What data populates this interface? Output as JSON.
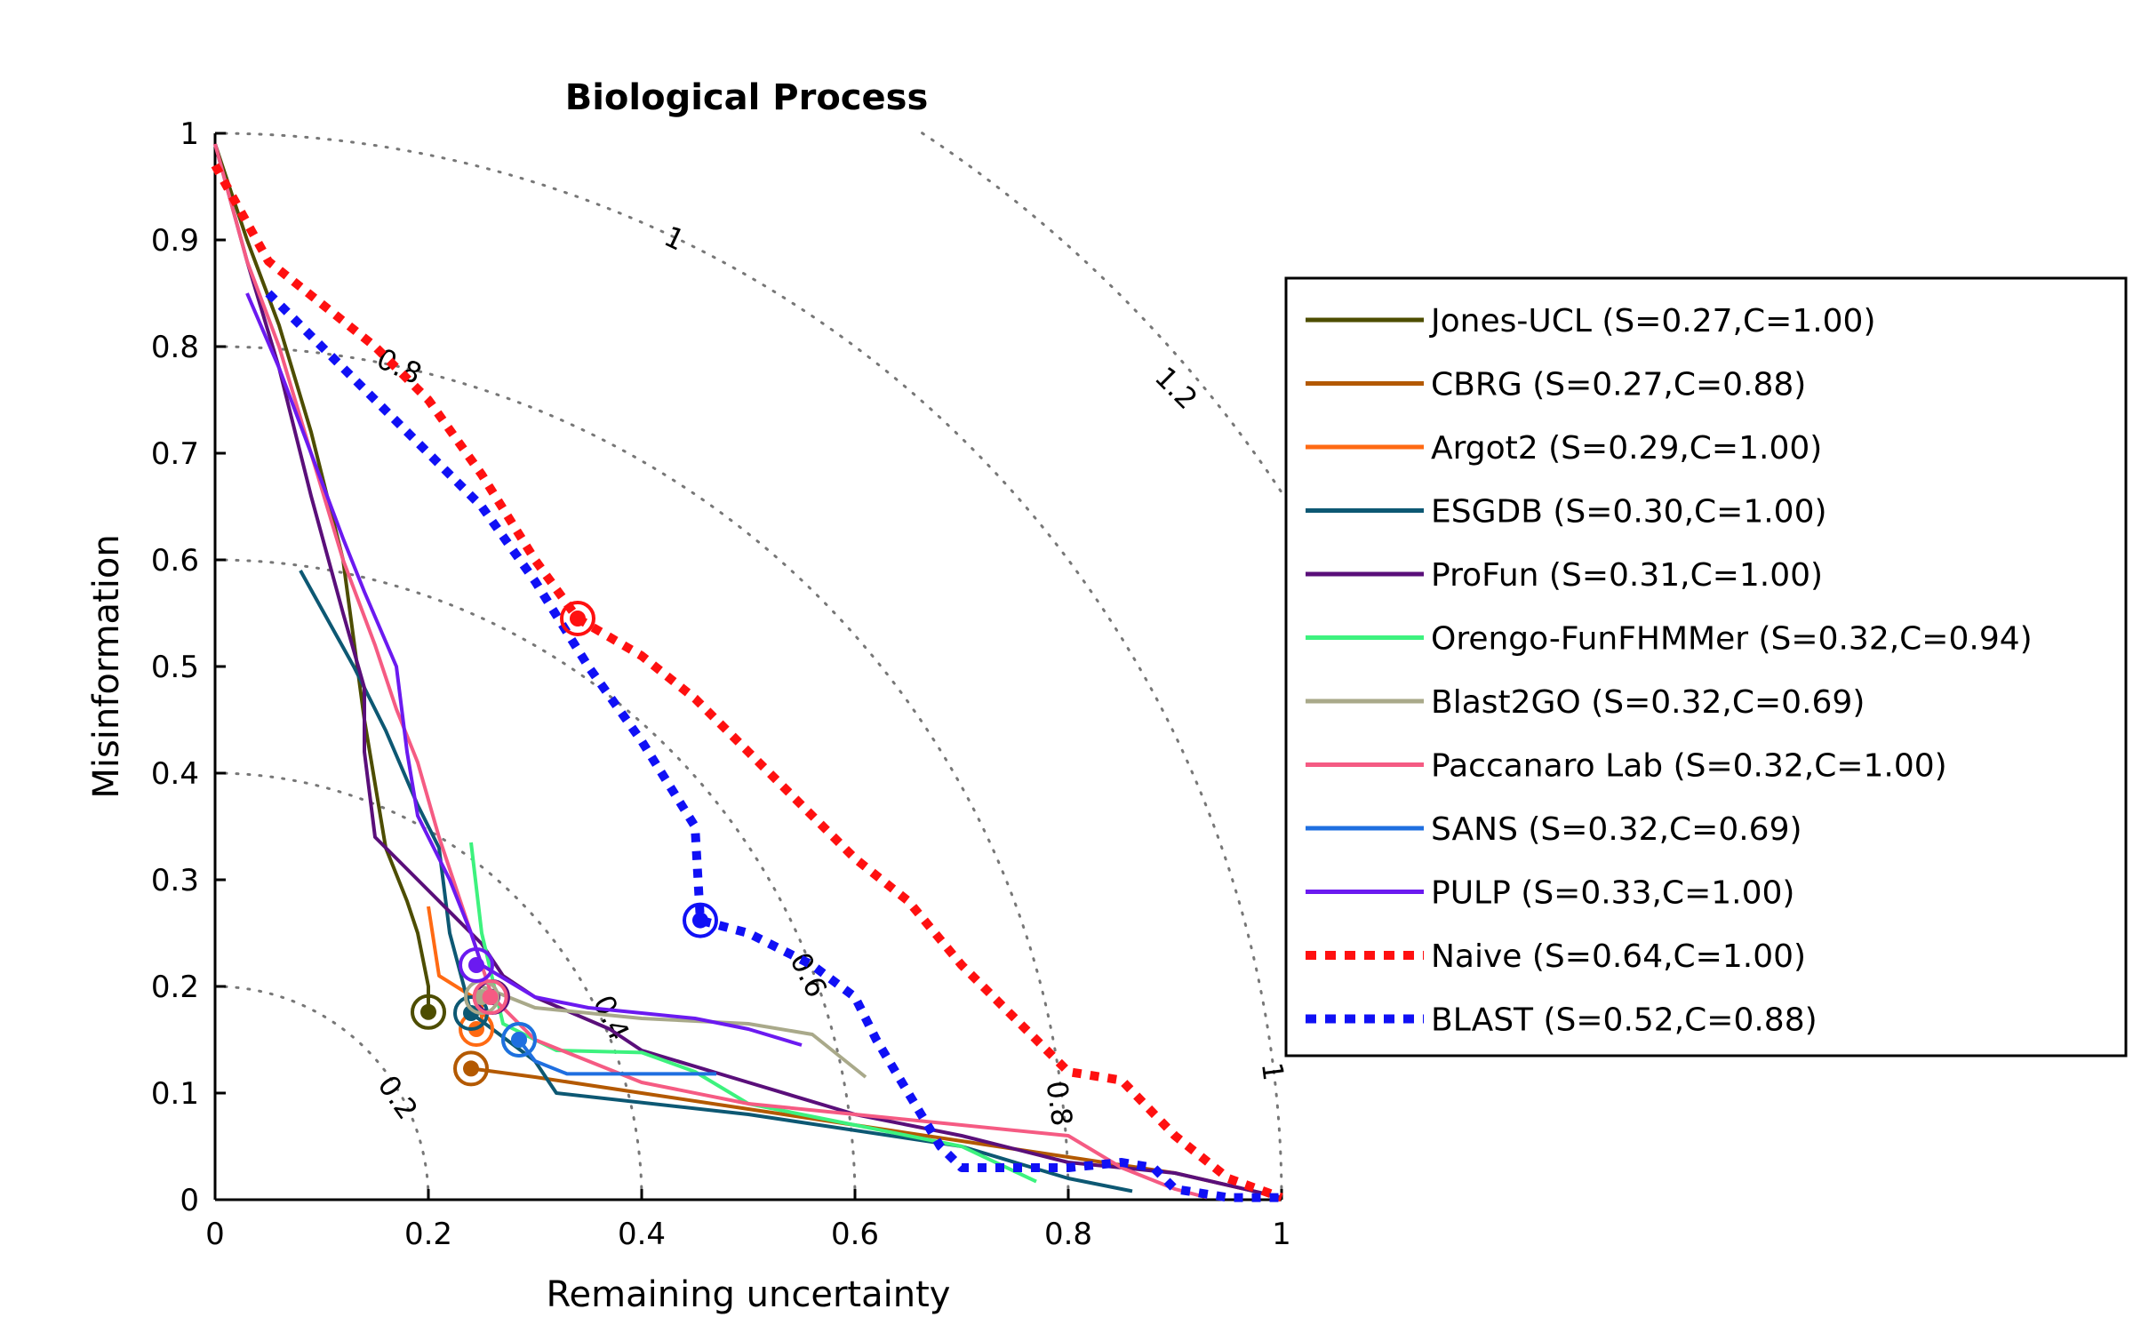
{
  "chart_data": {
    "type": "line",
    "title": "Biological Process",
    "xlabel": "Remaining uncertainty",
    "ylabel": "Misinformation",
    "xlim": [
      0,
      1
    ],
    "ylim": [
      0,
      1
    ],
    "xticks": [
      "0",
      "0.2",
      "0.4",
      "0.6",
      "0.8",
      "1"
    ],
    "yticks": [
      "0",
      "0.1",
      "0.2",
      "0.3",
      "0.4",
      "0.5",
      "0.6",
      "0.7",
      "0.8",
      "0.9",
      "1"
    ],
    "grid": "dotted iso-semantic-distance arcs",
    "iso_curves": [
      {
        "radius": 0.2,
        "label": "0.2"
      },
      {
        "radius": 0.4,
        "label": "0.4"
      },
      {
        "radius": 0.6,
        "label": "0.6"
      },
      {
        "radius": 0.8,
        "label": "0.8"
      },
      {
        "radius": 1.0,
        "label": "1"
      },
      {
        "radius": 1.2,
        "label": "1.2"
      }
    ],
    "legend_position": "right",
    "series": [
      {
        "name": "Jones-UCL (S=0.27,C=1.00)",
        "color": "#4d4d00",
        "style": "solid",
        "points": [
          [
            0,
            0.99
          ],
          [
            0.03,
            0.9
          ],
          [
            0.06,
            0.82
          ],
          [
            0.09,
            0.72
          ],
          [
            0.12,
            0.6
          ],
          [
            0.14,
            0.45
          ],
          [
            0.15,
            0.39
          ],
          [
            0.16,
            0.33
          ],
          [
            0.18,
            0.28
          ],
          [
            0.19,
            0.25
          ],
          [
            0.2,
            0.2
          ],
          [
            0.2,
            0.176
          ]
        ],
        "marker": [
          0.2,
          0.176
        ]
      },
      {
        "name": "CBRG (S=0.27,C=0.88)",
        "color": "#b35900",
        "style": "solid",
        "points": [
          [
            0.24,
            0.123
          ],
          [
            0.3,
            0.115
          ],
          [
            0.4,
            0.1
          ],
          [
            0.5,
            0.085
          ],
          [
            0.6,
            0.07
          ],
          [
            0.7,
            0.055
          ],
          [
            0.8,
            0.04
          ],
          [
            0.9,
            0.025
          ],
          [
            1.0,
            0.002
          ]
        ],
        "marker": [
          0.24,
          0.123
        ]
      },
      {
        "name": "Argot2 (S=0.29,C=1.00)",
        "color": "#ff6a13",
        "style": "solid",
        "points": [
          [
            0.2,
            0.275
          ],
          [
            0.21,
            0.21
          ],
          [
            0.25,
            0.185
          ],
          [
            0.25,
            0.16
          ]
        ],
        "marker": [
          0.245,
          0.16
        ]
      },
      {
        "name": "ESGDB (S=0.30,C=1.00)",
        "color": "#0d5873",
        "style": "solid",
        "points": [
          [
            0.08,
            0.59
          ],
          [
            0.13,
            0.5
          ],
          [
            0.16,
            0.44
          ],
          [
            0.19,
            0.37
          ],
          [
            0.21,
            0.33
          ],
          [
            0.22,
            0.25
          ],
          [
            0.24,
            0.175
          ],
          [
            0.3,
            0.13
          ],
          [
            0.32,
            0.1
          ],
          [
            0.5,
            0.08
          ],
          [
            0.7,
            0.05
          ],
          [
            0.8,
            0.02
          ],
          [
            0.86,
            0.008
          ]
        ],
        "marker": [
          0.24,
          0.175
        ]
      },
      {
        "name": "ProFun (S=0.31,C=1.00)",
        "color": "#5a0f7a",
        "style": "solid",
        "points": [
          [
            0,
            0.99
          ],
          [
            0.03,
            0.88
          ],
          [
            0.06,
            0.78
          ],
          [
            0.09,
            0.66
          ],
          [
            0.12,
            0.55
          ],
          [
            0.14,
            0.48
          ],
          [
            0.14,
            0.42
          ],
          [
            0.15,
            0.34
          ],
          [
            0.2,
            0.29
          ],
          [
            0.25,
            0.24
          ],
          [
            0.27,
            0.21
          ],
          [
            0.3,
            0.19
          ],
          [
            0.37,
            0.16
          ],
          [
            0.4,
            0.14
          ],
          [
            0.5,
            0.11
          ],
          [
            0.6,
            0.08
          ],
          [
            0.7,
            0.06
          ],
          [
            0.8,
            0.035
          ],
          [
            0.9,
            0.025
          ],
          [
            1.0,
            0.002
          ]
        ],
        "marker": [
          0.26,
          0.19
        ]
      },
      {
        "name": "Orengo-FunFHMMer (S=0.32,C=0.94)",
        "color": "#3df27e",
        "style": "solid",
        "points": [
          [
            0.24,
            0.335
          ],
          [
            0.25,
            0.25
          ],
          [
            0.27,
            0.165
          ],
          [
            0.32,
            0.14
          ],
          [
            0.4,
            0.138
          ],
          [
            0.45,
            0.12
          ],
          [
            0.5,
            0.09
          ],
          [
            0.6,
            0.07
          ],
          [
            0.7,
            0.05
          ],
          [
            0.77,
            0.017
          ]
        ],
        "marker": [
          0.285,
          0.15
        ]
      },
      {
        "name": "Blast2GO (S=0.32,C=0.69)",
        "color": "#a9a98a",
        "style": "solid",
        "points": [
          [
            0.25,
            0.2
          ],
          [
            0.3,
            0.18
          ],
          [
            0.4,
            0.17
          ],
          [
            0.5,
            0.165
          ],
          [
            0.56,
            0.155
          ],
          [
            0.61,
            0.115
          ]
        ],
        "marker": [
          0.25,
          0.19
        ]
      },
      {
        "name": "Paccanaro Lab (S=0.32,C=1.00)",
        "color": "#f55b83",
        "style": "solid",
        "points": [
          [
            0,
            0.99
          ],
          [
            0.03,
            0.88
          ],
          [
            0.06,
            0.8
          ],
          [
            0.09,
            0.7
          ],
          [
            0.12,
            0.6
          ],
          [
            0.15,
            0.52
          ],
          [
            0.17,
            0.46
          ],
          [
            0.19,
            0.41
          ],
          [
            0.21,
            0.34
          ],
          [
            0.23,
            0.28
          ],
          [
            0.25,
            0.22
          ],
          [
            0.26,
            0.19
          ],
          [
            0.3,
            0.15
          ],
          [
            0.4,
            0.11
          ],
          [
            0.5,
            0.09
          ],
          [
            0.6,
            0.08
          ],
          [
            0.7,
            0.07
          ],
          [
            0.8,
            0.06
          ],
          [
            0.85,
            0.03
          ],
          [
            0.9,
            0.01
          ],
          [
            0.93,
            0.002
          ]
        ],
        "marker": [
          0.258,
          0.19
        ]
      },
      {
        "name": "SANS (S=0.32,C=0.69)",
        "color": "#1f6fe0",
        "style": "solid",
        "points": [
          [
            0.285,
            0.15
          ],
          [
            0.3,
            0.13
          ],
          [
            0.33,
            0.118
          ],
          [
            0.47,
            0.118
          ]
        ],
        "marker": [
          0.285,
          0.15
        ]
      },
      {
        "name": "PULP (S=0.33,C=1.00)",
        "color": "#6b1af0",
        "style": "solid",
        "points": [
          [
            0.03,
            0.85
          ],
          [
            0.06,
            0.78
          ],
          [
            0.09,
            0.7
          ],
          [
            0.12,
            0.62
          ],
          [
            0.14,
            0.57
          ],
          [
            0.17,
            0.5
          ],
          [
            0.18,
            0.42
          ],
          [
            0.19,
            0.36
          ],
          [
            0.22,
            0.3
          ],
          [
            0.24,
            0.25
          ],
          [
            0.25,
            0.22
          ],
          [
            0.3,
            0.19
          ],
          [
            0.35,
            0.18
          ],
          [
            0.4,
            0.175
          ],
          [
            0.45,
            0.17
          ],
          [
            0.5,
            0.16
          ],
          [
            0.55,
            0.145
          ]
        ],
        "marker": [
          0.245,
          0.22
        ]
      },
      {
        "name": "Naive (S=0.64,C=1.00)",
        "color": "#ff1010",
        "style": "dotted",
        "points": [
          [
            0,
            0.97
          ],
          [
            0.05,
            0.88
          ],
          [
            0.1,
            0.84
          ],
          [
            0.15,
            0.8
          ],
          [
            0.2,
            0.75
          ],
          [
            0.25,
            0.68
          ],
          [
            0.3,
            0.6
          ],
          [
            0.34,
            0.545
          ],
          [
            0.4,
            0.51
          ],
          [
            0.45,
            0.47
          ],
          [
            0.5,
            0.42
          ],
          [
            0.55,
            0.37
          ],
          [
            0.6,
            0.32
          ],
          [
            0.65,
            0.28
          ],
          [
            0.7,
            0.22
          ],
          [
            0.75,
            0.17
          ],
          [
            0.8,
            0.12
          ],
          [
            0.85,
            0.112
          ],
          [
            0.9,
            0.06
          ],
          [
            0.95,
            0.02
          ],
          [
            1.0,
            0.002
          ]
        ],
        "marker": [
          0.34,
          0.545
        ]
      },
      {
        "name": "BLAST (S=0.52,C=0.88)",
        "color": "#1010f5",
        "style": "dotted",
        "points": [
          [
            0.05,
            0.85
          ],
          [
            0.1,
            0.8
          ],
          [
            0.15,
            0.75
          ],
          [
            0.2,
            0.7
          ],
          [
            0.25,
            0.65
          ],
          [
            0.3,
            0.58
          ],
          [
            0.35,
            0.5
          ],
          [
            0.4,
            0.43
          ],
          [
            0.45,
            0.35
          ],
          [
            0.455,
            0.262
          ],
          [
            0.5,
            0.25
          ],
          [
            0.56,
            0.22
          ],
          [
            0.6,
            0.19
          ],
          [
            0.62,
            0.15
          ],
          [
            0.65,
            0.1
          ],
          [
            0.68,
            0.05
          ],
          [
            0.7,
            0.03
          ],
          [
            0.8,
            0.03
          ],
          [
            0.85,
            0.035
          ],
          [
            0.88,
            0.03
          ],
          [
            0.9,
            0.01
          ],
          [
            0.95,
            0.002
          ],
          [
            1.0,
            0.002
          ]
        ],
        "marker": [
          0.455,
          0.262
        ]
      }
    ]
  }
}
